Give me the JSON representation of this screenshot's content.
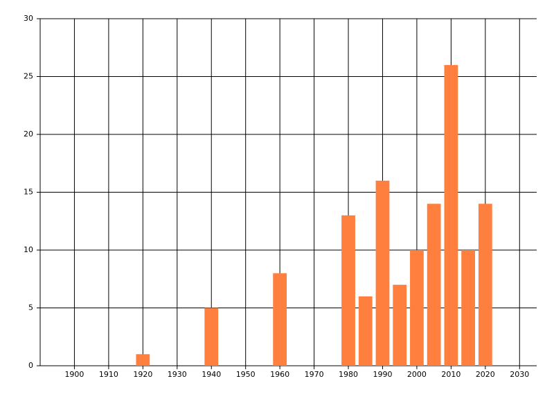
{
  "chart_data": {
    "type": "bar",
    "x": [
      1920,
      1940,
      1960,
      1980,
      1985,
      1990,
      1995,
      2000,
      2005,
      2010,
      2015,
      2020
    ],
    "values": [
      1,
      5,
      8,
      13,
      6,
      16,
      7,
      10,
      14,
      26,
      10,
      14
    ],
    "color": "#ff7f3f",
    "xlim": [
      1890,
      2035
    ],
    "xticks": [
      1900,
      1910,
      1920,
      1930,
      1940,
      1950,
      1960,
      1970,
      1980,
      1990,
      2000,
      2010,
      2020,
      2030
    ],
    "ylim": [
      0,
      30
    ],
    "yticks": [
      0,
      5,
      10,
      15,
      20,
      25,
      30
    ],
    "grid": true
  }
}
